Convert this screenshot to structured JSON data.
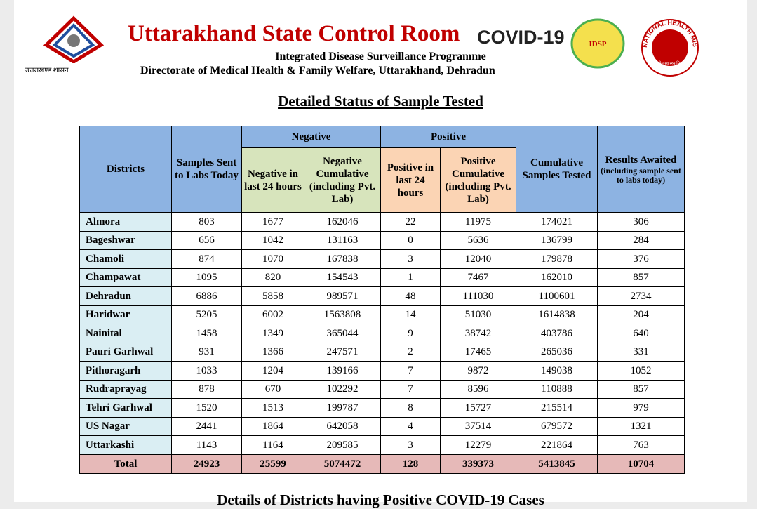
{
  "header": {
    "title": "Uttarakhand State Control Room",
    "covid_logo": "COVID-19",
    "subtitle": "Integrated Disease Surveillance Programme",
    "directorate": "Directorate of Medical Health & Family Welfare, Uttarakhand, Dehradun",
    "emblem_caption": "उत्तराखण्ड शासन",
    "idsp": "IDSP",
    "nhm_text": "NATIONAL HEALTH MISSION",
    "nhm_caption": "राष्ट्रीय स्वास्थ्य मिशन"
  },
  "section_title": "Detailed Status of Sample Tested",
  "table": {
    "headers": {
      "districts": "Districts",
      "samples": "Samples Sent to Labs Today",
      "negative": "Negative",
      "neg24": "Negative in last 24 hours",
      "negcum": "Negative Cumulative (including Pvt. Lab)",
      "positive": "Positive",
      "pos24": "Positive in last 24 hours",
      "poscum": "Positive Cumulative (including Pvt. Lab)",
      "cumtested": "Cumulative Samples Tested",
      "awaited": "Results Awaited",
      "awaited_note": "(including sample sent to labs today)"
    },
    "rows": [
      [
        "Almora",
        803,
        1677,
        162046,
        22,
        11975,
        174021,
        306
      ],
      [
        "Bageshwar",
        656,
        1042,
        131163,
        0,
        5636,
        136799,
        284
      ],
      [
        "Chamoli",
        874,
        1070,
        167838,
        3,
        12040,
        179878,
        376
      ],
      [
        "Champawat",
        1095,
        820,
        154543,
        1,
        7467,
        162010,
        857
      ],
      [
        "Dehradun",
        6886,
        5858,
        989571,
        48,
        111030,
        1100601,
        2734
      ],
      [
        "Haridwar",
        5205,
        6002,
        1563808,
        14,
        51030,
        1614838,
        204
      ],
      [
        "Nainital",
        1458,
        1349,
        365044,
        9,
        38742,
        403786,
        640
      ],
      [
        "Pauri Garhwal",
        931,
        1366,
        247571,
        2,
        17465,
        265036,
        331
      ],
      [
        "Pithoragarh",
        1033,
        1204,
        139166,
        7,
        9872,
        149038,
        1052
      ],
      [
        "Rudraprayag",
        878,
        670,
        102292,
        7,
        8596,
        110888,
        857
      ],
      [
        "Tehri Garhwal",
        1520,
        1513,
        199787,
        8,
        15727,
        215514,
        979
      ],
      [
        "US Nagar",
        2441,
        1864,
        642058,
        4,
        37514,
        679572,
        1321
      ],
      [
        "Uttarkashi",
        1143,
        1164,
        209585,
        3,
        12279,
        221864,
        763
      ]
    ],
    "total": [
      "Total",
      24923,
      25599,
      5074472,
      128,
      339373,
      5413845,
      10704
    ]
  },
  "next_section": "Details of Districts having Positive COVID-19 Cases"
}
